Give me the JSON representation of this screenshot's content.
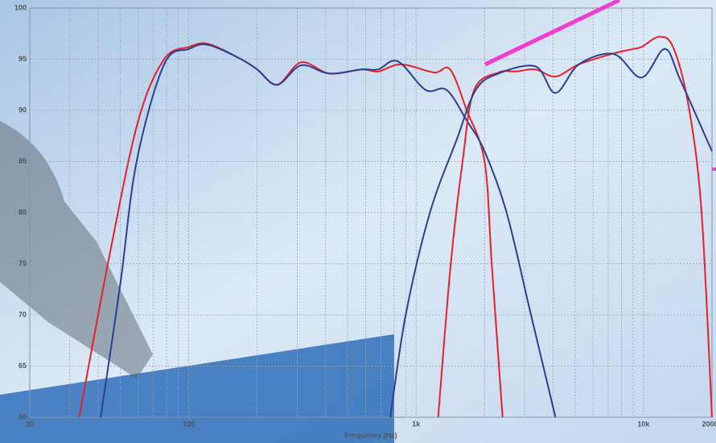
{
  "chart_data": {
    "type": "line",
    "x_label": "Frequency (Hz)",
    "log_x": true,
    "xlim": [
      20,
      20000
    ],
    "ylim": [
      60,
      100
    ],
    "xticks": [
      20,
      100,
      {
        "value": 1000,
        "label": "1k"
      },
      {
        "value": 10000,
        "label": "10k"
      },
      20000
    ],
    "xticks_minor": [
      30,
      40,
      50,
      60,
      70,
      80,
      90,
      200,
      300,
      400,
      500,
      600,
      700,
      800,
      900,
      2000,
      3000,
      4000,
      5000,
      6000,
      7000,
      8000,
      9000
    ],
    "yticks": [
      60,
      65,
      70,
      75,
      80,
      85,
      90,
      95,
      100
    ],
    "grid": true,
    "series": [
      {
        "color": "#e8202a",
        "x": [
          33,
          45,
          60,
          78,
          100,
          122,
          170,
          200,
          245,
          312,
          415,
          575,
          680,
          860,
          1200,
          1410,
          1670,
          2000,
          2150,
          2400
        ],
        "values": [
          60,
          76,
          89,
          95,
          96.2,
          96.5,
          95,
          94,
          92.5,
          94.7,
          93.6,
          94,
          93.8,
          94.5,
          93.7,
          94,
          90,
          85,
          75,
          60
        ]
      },
      {
        "color": "#2b3f91",
        "x": [
          41,
          50,
          59,
          78,
          100,
          122,
          170,
          200,
          245,
          312,
          415,
          575,
          680,
          830,
          1100,
          1360,
          1670,
          2000,
          2500,
          3200,
          4100
        ],
        "values": [
          60,
          73,
          85,
          94.5,
          96,
          96.4,
          95,
          94,
          92.5,
          94.4,
          93.6,
          94,
          94,
          94.8,
          92,
          92,
          89,
          86,
          80,
          70,
          60
        ]
      },
      {
        "color": "#e8202a",
        "x": [
          1250,
          1420,
          1600,
          1800,
          2300,
          2750,
          3350,
          4100,
          5200,
          7200,
          9000,
          9800,
          11800,
          13600,
          15900,
          18000,
          20000
        ],
        "values": [
          60,
          75,
          85,
          92,
          93.7,
          93.8,
          94,
          93.3,
          94.5,
          95.5,
          96,
          96.2,
          97.2,
          96,
          90,
          80,
          60
        ]
      },
      {
        "color": "#2b3f91",
        "x": [
          770,
          900,
          1150,
          1500,
          1830,
          2300,
          3350,
          4100,
          5200,
          7400,
          9800,
          12400,
          14500,
          20000
        ],
        "values": [
          60,
          70,
          80,
          87,
          92,
          93.6,
          94.3,
          91.7,
          94.5,
          95.5,
          93.2,
          96,
          93,
          86
        ]
      }
    ]
  }
}
